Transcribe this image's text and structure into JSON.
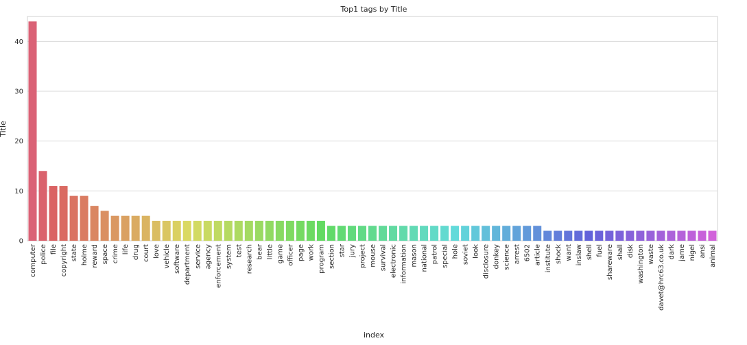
{
  "chart_data": {
    "type": "bar",
    "title": "Top1 tags by Title",
    "xlabel": "index",
    "ylabel": "Title",
    "ylim": [
      0,
      45
    ],
    "yticks": [
      0,
      10,
      20,
      30,
      40
    ],
    "grid": true,
    "categories": [
      "computer",
      "police",
      "file",
      "copyright",
      "state",
      "holme",
      "reward",
      "space",
      "crime",
      "life",
      "drug",
      "court",
      "love",
      "vehicle",
      "software",
      "department",
      "service",
      "agency",
      "enforcement",
      "system",
      "test",
      "research",
      "bear",
      "little",
      "game",
      "officer",
      "page",
      "work",
      "program",
      "section",
      "star",
      "jury",
      "project",
      "mouse",
      "survival",
      "electronic",
      "information",
      "mason",
      "national",
      "patrol",
      "special",
      "hole",
      "soviet",
      "look",
      "disclosure",
      "donkey",
      "science",
      "arrest",
      "6502",
      "article",
      "institute",
      "shock",
      "want",
      "inslaw",
      "shell",
      "fuel",
      "shareware",
      "shall",
      "disk",
      "washington",
      "waste",
      "davet@hrc63.co.uk",
      "dark",
      "jame",
      "nigel",
      "ansi",
      "animal"
    ],
    "values": [
      44,
      14,
      11,
      11,
      9,
      9,
      7,
      6,
      5,
      5,
      5,
      5,
      4,
      4,
      4,
      4,
      4,
      4,
      4,
      4,
      4,
      4,
      4,
      4,
      4,
      4,
      4,
      4,
      4,
      3,
      3,
      3,
      3,
      3,
      3,
      3,
      3,
      3,
      3,
      3,
      3,
      3,
      3,
      3,
      3,
      3,
      3,
      3,
      3,
      3,
      2,
      2,
      2,
      2,
      2,
      2,
      2,
      2,
      2,
      2,
      2,
      2,
      2,
      2,
      2,
      2,
      2
    ]
  }
}
